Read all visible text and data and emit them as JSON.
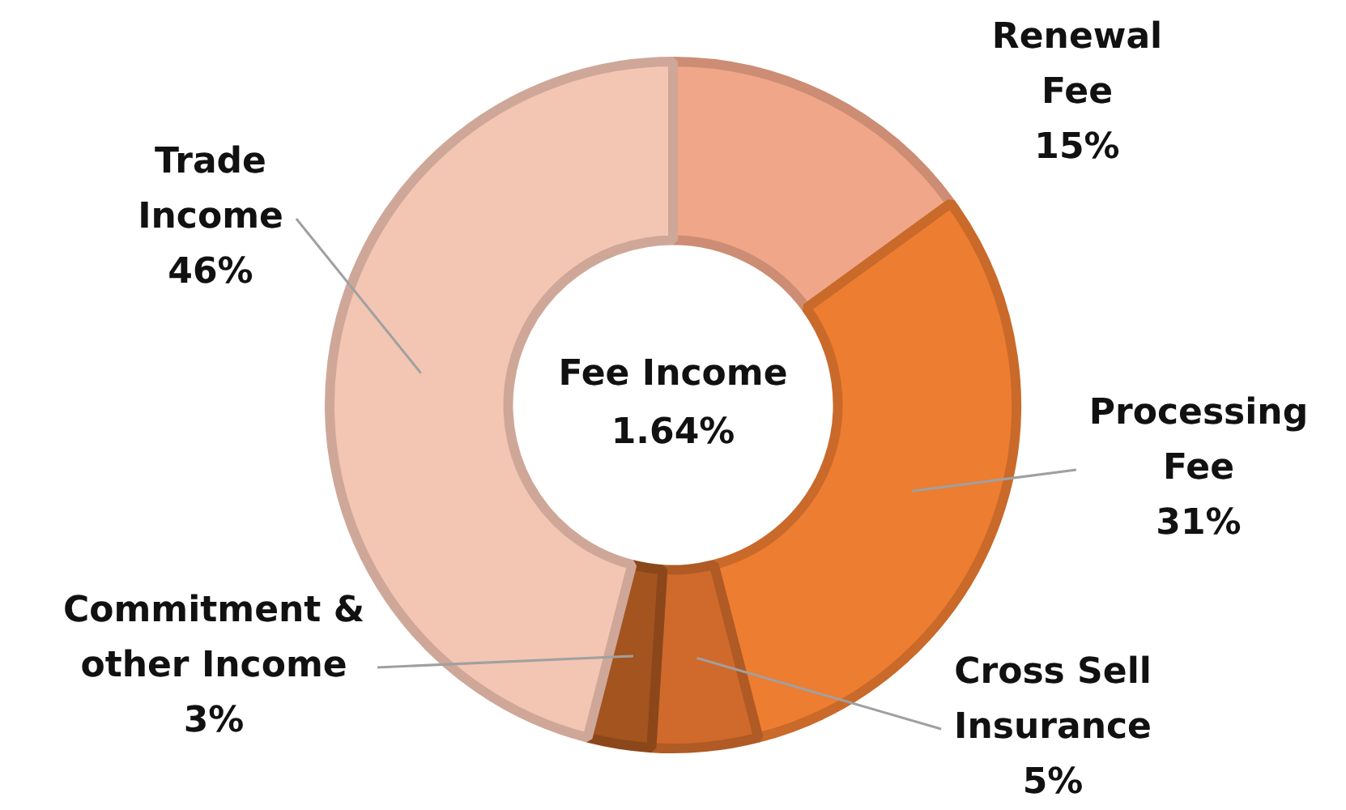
{
  "chart_data": {
    "type": "donut",
    "categories": [
      "Renewal Fee",
      "Processing Fee",
      "Cross Sell Insurance",
      "Commitment & other Income",
      "Trade Income"
    ],
    "values": [
      15,
      31,
      5,
      3,
      46
    ],
    "value_labels": [
      "15%",
      "31%",
      "5%",
      "3%",
      "46%"
    ],
    "colors": [
      "#f0a688",
      "#ed7d31",
      "#cf6a2c",
      "#a3541f",
      "#f3c5b3"
    ],
    "annotations": [
      "Fee Income 1.64%"
    ],
    "legend": false
  }
}
